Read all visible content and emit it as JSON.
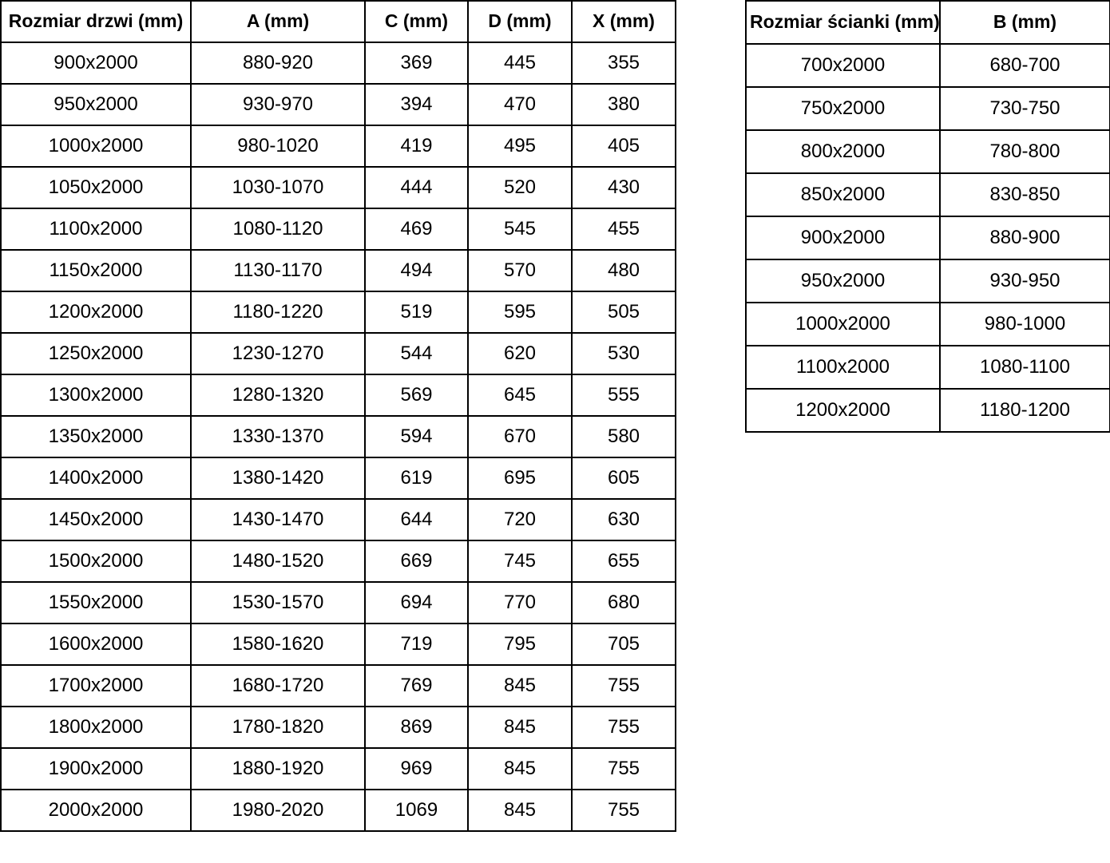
{
  "colors": {
    "border": "#000000",
    "text": "#000000",
    "background": "#ffffff"
  },
  "chart_data": [
    {
      "type": "table",
      "title": "",
      "headers": [
        "Rozmiar drzwi (mm)",
        "A (mm)",
        "C (mm)",
        "D (mm)",
        "X (mm)"
      ],
      "rows": [
        [
          "900x2000",
          "880-920",
          "369",
          "445",
          "355"
        ],
        [
          "950x2000",
          "930-970",
          "394",
          "470",
          "380"
        ],
        [
          "1000x2000",
          "980-1020",
          "419",
          "495",
          "405"
        ],
        [
          "1050x2000",
          "1030-1070",
          "444",
          "520",
          "430"
        ],
        [
          "1100x2000",
          "1080-1120",
          "469",
          "545",
          "455"
        ],
        [
          "1150x2000",
          "1130-1170",
          "494",
          "570",
          "480"
        ],
        [
          "1200x2000",
          "1180-1220",
          "519",
          "595",
          "505"
        ],
        [
          "1250x2000",
          "1230-1270",
          "544",
          "620",
          "530"
        ],
        [
          "1300x2000",
          "1280-1320",
          "569",
          "645",
          "555"
        ],
        [
          "1350x2000",
          "1330-1370",
          "594",
          "670",
          "580"
        ],
        [
          "1400x2000",
          "1380-1420",
          "619",
          "695",
          "605"
        ],
        [
          "1450x2000",
          "1430-1470",
          "644",
          "720",
          "630"
        ],
        [
          "1500x2000",
          "1480-1520",
          "669",
          "745",
          "655"
        ],
        [
          "1550x2000",
          "1530-1570",
          "694",
          "770",
          "680"
        ],
        [
          "1600x2000",
          "1580-1620",
          "719",
          "795",
          "705"
        ],
        [
          "1700x2000",
          "1680-1720",
          "769",
          "845",
          "755"
        ],
        [
          "1800x2000",
          "1780-1820",
          "869",
          "845",
          "755"
        ],
        [
          "1900x2000",
          "1880-1920",
          "969",
          "845",
          "755"
        ],
        [
          "2000x2000",
          "1980-2020",
          "1069",
          "845",
          "755"
        ]
      ]
    },
    {
      "type": "table",
      "title": "",
      "headers": [
        "Rozmiar ścianki (mm)",
        "B (mm)"
      ],
      "rows": [
        [
          "700x2000",
          "680-700"
        ],
        [
          "750x2000",
          "730-750"
        ],
        [
          "800x2000",
          "780-800"
        ],
        [
          "850x2000",
          "830-850"
        ],
        [
          "900x2000",
          "880-900"
        ],
        [
          "950x2000",
          "930-950"
        ],
        [
          "1000x2000",
          "980-1000"
        ],
        [
          "1100x2000",
          "1080-1100"
        ],
        [
          "1200x2000",
          "1180-1200"
        ]
      ]
    }
  ]
}
